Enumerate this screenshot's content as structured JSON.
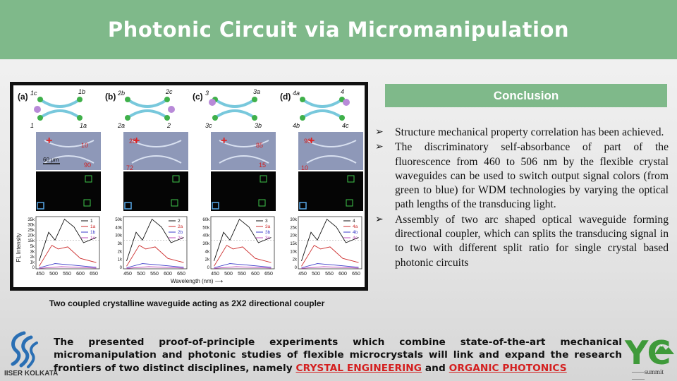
{
  "title": "Photonic Circuit via Micromanipulation",
  "figure": {
    "panels": [
      {
        "label": "(a)",
        "ports": [
          "1c",
          "1b",
          "1",
          "1a"
        ],
        "numbers": [
          "10",
          "90"
        ],
        "scale": "60 μm",
        "yticks": [
          "35k",
          "30k",
          "25k",
          "20k",
          "15k",
          "5k",
          "3k",
          "2k",
          "1k",
          "0"
        ],
        "legend": [
          "1",
          "1a",
          "1b",
          "1c"
        ]
      },
      {
        "label": "(b)",
        "ports": [
          "2b",
          "2c",
          "2a",
          "2"
        ],
        "numbers": [
          "28",
          "72"
        ],
        "yticks": [
          "50k",
          "40k",
          "30k",
          "3k",
          "2k",
          "1k",
          "0"
        ],
        "legend": [
          "2",
          "2a",
          "2b",
          "2c"
        ]
      },
      {
        "label": "(c)",
        "ports": [
          "3",
          "3a",
          "3c",
          "3b"
        ],
        "numbers": [
          "85",
          "15"
        ],
        "yticks": [
          "60k",
          "50k",
          "40k",
          "30k",
          "4k",
          "2k",
          "0"
        ],
        "legend": [
          "3",
          "3a",
          "3b",
          "3c"
        ]
      },
      {
        "label": "(d)",
        "ports": [
          "4a",
          "4",
          "4b",
          "4c"
        ],
        "numbers": [
          "90",
          "10"
        ],
        "yticks": [
          "30k",
          "25k",
          "20k",
          "15k",
          "10k",
          "2k",
          "0"
        ],
        "legend": [
          "4",
          "4a",
          "4b",
          "4c"
        ]
      }
    ],
    "xticks": [
      "450",
      "500",
      "550",
      "600",
      "650"
    ],
    "ylabel": "FL Intensity",
    "xlabel": "Wavelength (nm) ⟶",
    "series_colors": [
      "#111111",
      "#cc2a2a",
      "#3a3ac8",
      "#c04db8"
    ]
  },
  "caption": "Two coupled crystalline waveguide acting as 2X2 directional coupler",
  "conclusion": {
    "heading": "Conclusion",
    "bullet_mark": "➢",
    "items": [
      "Structure mechanical property correlation has been achieved.",
      "The discriminatory self-absorbance of part of the fluorescence from 460 to 506 nm by the flexible crystal waveguides can be used to switch output signal colors (from green to blue) for WDM technologies by varying the optical path lengths of the transducing light.",
      "Assembly of two arc shaped optical waveguide forming directional coupler, which can splits the transducing signal in to two with different split ratio for single crystal based photonic circuits"
    ]
  },
  "footer": {
    "text": "The presented proof-of-principle experiments which combine state-of-the-art mechanical micromanipulation and photonic studies of flexible microcrystals will link and expand the research frontiers of two distinct disciplines, namely",
    "highlight1": "CRYSTAL ENGINEERING",
    "joiner": "and",
    "highlight2": "ORGANIC PHOTONICS"
  },
  "logos": {
    "left_name": "IISER KOLKATA",
    "right_name": "YC",
    "right_sub": "——summit——"
  }
}
